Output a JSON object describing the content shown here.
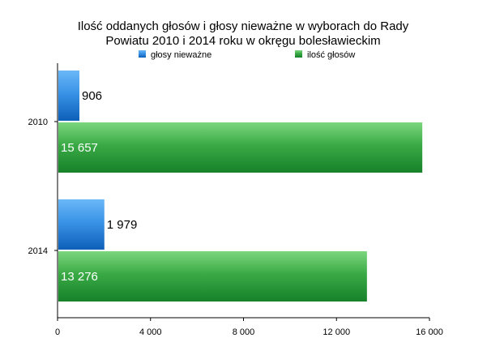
{
  "chart_data": {
    "type": "bar",
    "orientation": "horizontal",
    "title": [
      "Ilość oddanych głosów i głosy nieważne w wyborach do Rady",
      "Powiatu 2010 i 2014 roku w okręgu bolesławieckim"
    ],
    "categories": [
      "2010",
      "2014"
    ],
    "series": [
      {
        "name": "głosy nieważne",
        "values": [
          906,
          1979
        ],
        "labels": [
          "906",
          "1 979"
        ],
        "color": "#1f78d1"
      },
      {
        "name": "ilość głosów",
        "values": [
          15657,
          13276
        ],
        "labels": [
          "15 657",
          "13 276"
        ],
        "color": "#2e9e3b"
      }
    ],
    "xlim": [
      0,
      16000
    ],
    "xticks": [
      0,
      4000,
      8000,
      12000,
      16000
    ],
    "xtick_labels": [
      "0",
      "4 000",
      "8 000",
      "12 000",
      "16 000"
    ],
    "grid": false,
    "legend_position": "top"
  }
}
